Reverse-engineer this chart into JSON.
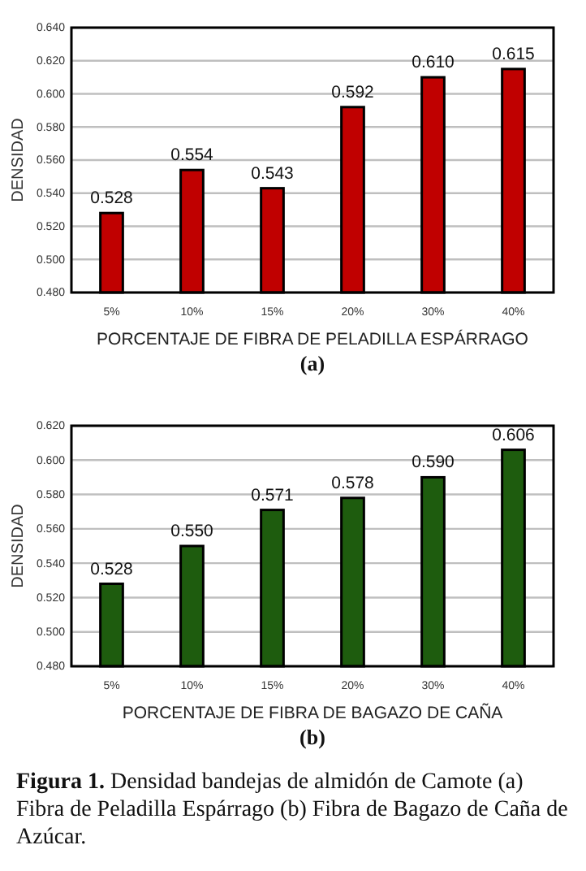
{
  "chart_data": [
    {
      "type": "bar",
      "subtitle": "(a)",
      "xlabel": "PORCENTAJE DE FIBRA DE PELADILLA ESPÁRRAGO",
      "ylabel": "DENSIDAD",
      "categories": [
        "5%",
        "10%",
        "15%",
        "20%",
        "30%",
        "40%"
      ],
      "values": [
        0.528,
        0.554,
        0.543,
        0.592,
        0.61,
        0.615
      ],
      "value_labels": [
        "0.528",
        "0.554",
        "0.543",
        "0.592",
        "0.610",
        "0.615"
      ],
      "color": "#c00000",
      "ylim": [
        0.48,
        0.64
      ],
      "yticks": [
        {
          "value": 0.48,
          "label": "0.480"
        },
        {
          "value": 0.5,
          "label": "0.500"
        },
        {
          "value": 0.52,
          "label": "0.520"
        },
        {
          "value": 0.54,
          "label": "0.540"
        },
        {
          "value": 0.56,
          "label": "0.560"
        },
        {
          "value": 0.58,
          "label": "0.580"
        },
        {
          "value": 0.6,
          "label": "0.600"
        },
        {
          "value": 0.62,
          "label": "0.620"
        },
        {
          "value": 0.64,
          "label": "0.640"
        }
      ],
      "grid": "y"
    },
    {
      "type": "bar",
      "subtitle": "(b)",
      "xlabel": "PORCENTAJE DE FIBRA DE BAGAZO DE CAÑA",
      "ylabel": "DENSIDAD",
      "categories": [
        "5%",
        "10%",
        "15%",
        "20%",
        "30%",
        "40%"
      ],
      "values": [
        0.528,
        0.55,
        0.571,
        0.578,
        0.59,
        0.606
      ],
      "value_labels": [
        "0.528",
        "0.550",
        "0.571",
        "0.578",
        "0.590",
        "0.606"
      ],
      "color": "#1e5c0e",
      "ylim": [
        0.48,
        0.62
      ],
      "yticks": [
        {
          "value": 0.48,
          "label": "0.480"
        },
        {
          "value": 0.5,
          "label": "0.500"
        },
        {
          "value": 0.52,
          "label": "0.520"
        },
        {
          "value": 0.54,
          "label": "0.540"
        },
        {
          "value": 0.56,
          "label": "0.560"
        },
        {
          "value": 0.58,
          "label": "0.580"
        },
        {
          "value": 0.6,
          "label": "0.600"
        },
        {
          "value": 0.62,
          "label": "0.620"
        }
      ],
      "grid": "y",
      "annotations": [
        "Figura 1. Densidad bandejas de almidón de Camote (a) Fibra de Peladilla Espárrago (b) Fibra de Bagazo de Caña de Azúcar."
      ]
    }
  ]
}
